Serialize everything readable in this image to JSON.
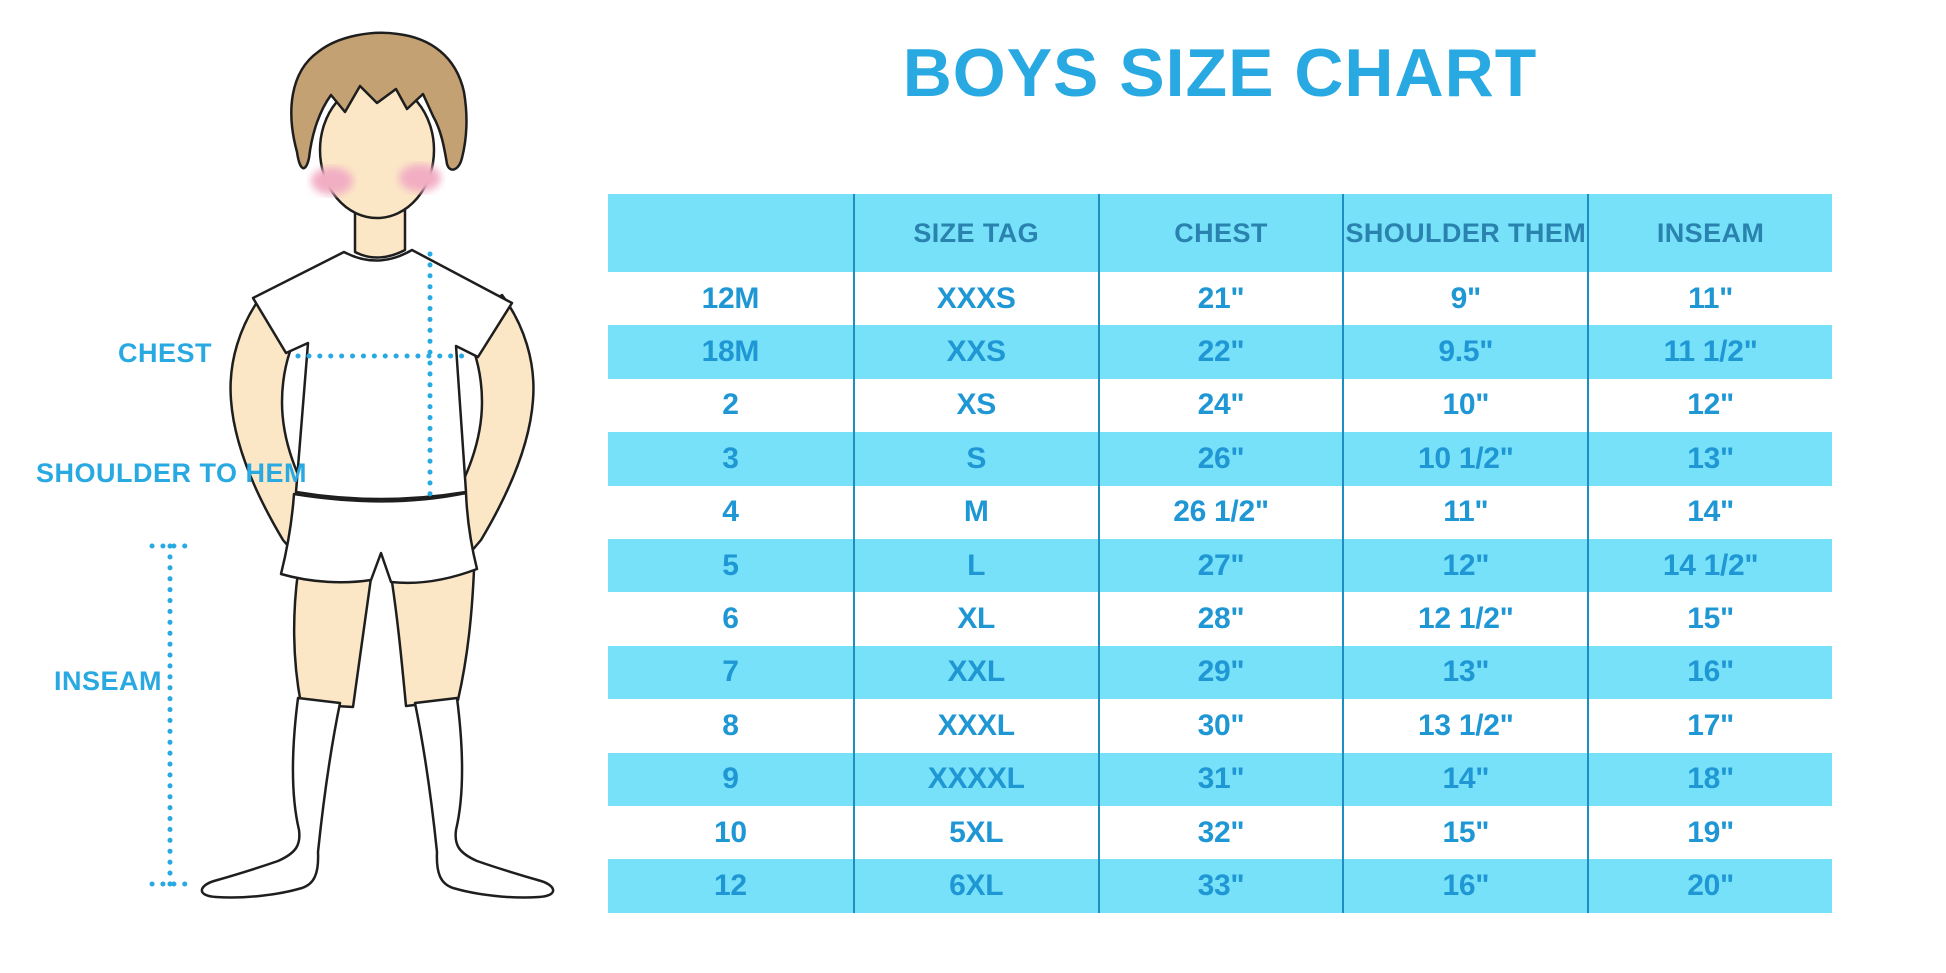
{
  "title": "BOYS SIZE CHART",
  "figure": {
    "illustration": "faceless boy in white t-shirt, shorts and knee socks with dotted measurement lines",
    "labels": {
      "chest": "CHEST",
      "shoulder_to_hem": "SHOULDER TO HEM",
      "inseam": "INSEAM"
    }
  },
  "chart_data": {
    "type": "table",
    "title": "BOYS SIZE CHART",
    "columns": [
      "",
      "SIZE TAG",
      "CHEST",
      "SHOULDER THEM",
      "INSEAM"
    ],
    "rows": [
      [
        "12M",
        "XXXS",
        "21\"",
        "9\"",
        "11\""
      ],
      [
        "18M",
        "XXS",
        "22\"",
        "9.5\"",
        "11 1/2\""
      ],
      [
        "2",
        "XS",
        "24\"",
        "10\"",
        "12\""
      ],
      [
        "3",
        "S",
        "26\"",
        "10 1/2\"",
        "13\""
      ],
      [
        "4",
        "M",
        "26 1/2\"",
        "11\"",
        "14\""
      ],
      [
        "5",
        "L",
        "27\"",
        "12\"",
        "14 1/2\""
      ],
      [
        "6",
        "XL",
        "28\"",
        "12 1/2\"",
        "15\""
      ],
      [
        "7",
        "XXL",
        "29\"",
        "13\"",
        "16\""
      ],
      [
        "8",
        "XXXL",
        "30\"",
        "13 1/2\"",
        "17\""
      ],
      [
        "9",
        "XXXXL",
        "31\"",
        "14\"",
        "18\""
      ],
      [
        "10",
        "5XL",
        "32\"",
        "15\"",
        "19\""
      ],
      [
        "12",
        "6XL",
        "33\"",
        "16\"",
        "20\""
      ]
    ],
    "layout": {
      "zebra_striping": true,
      "striped_color_rows": "header and even rows",
      "outer_border": false
    }
  },
  "colors": {
    "accent": "#29A9E1",
    "band": "#77E1F9",
    "header_ink": "#2A82AE",
    "cell_ink": "#1F97D4",
    "divider": "#1E8DC2",
    "skin": "#FBE7C6",
    "hair": "#C4A173",
    "blush": "#F2AFC4",
    "outline": "#1E1E1E"
  }
}
